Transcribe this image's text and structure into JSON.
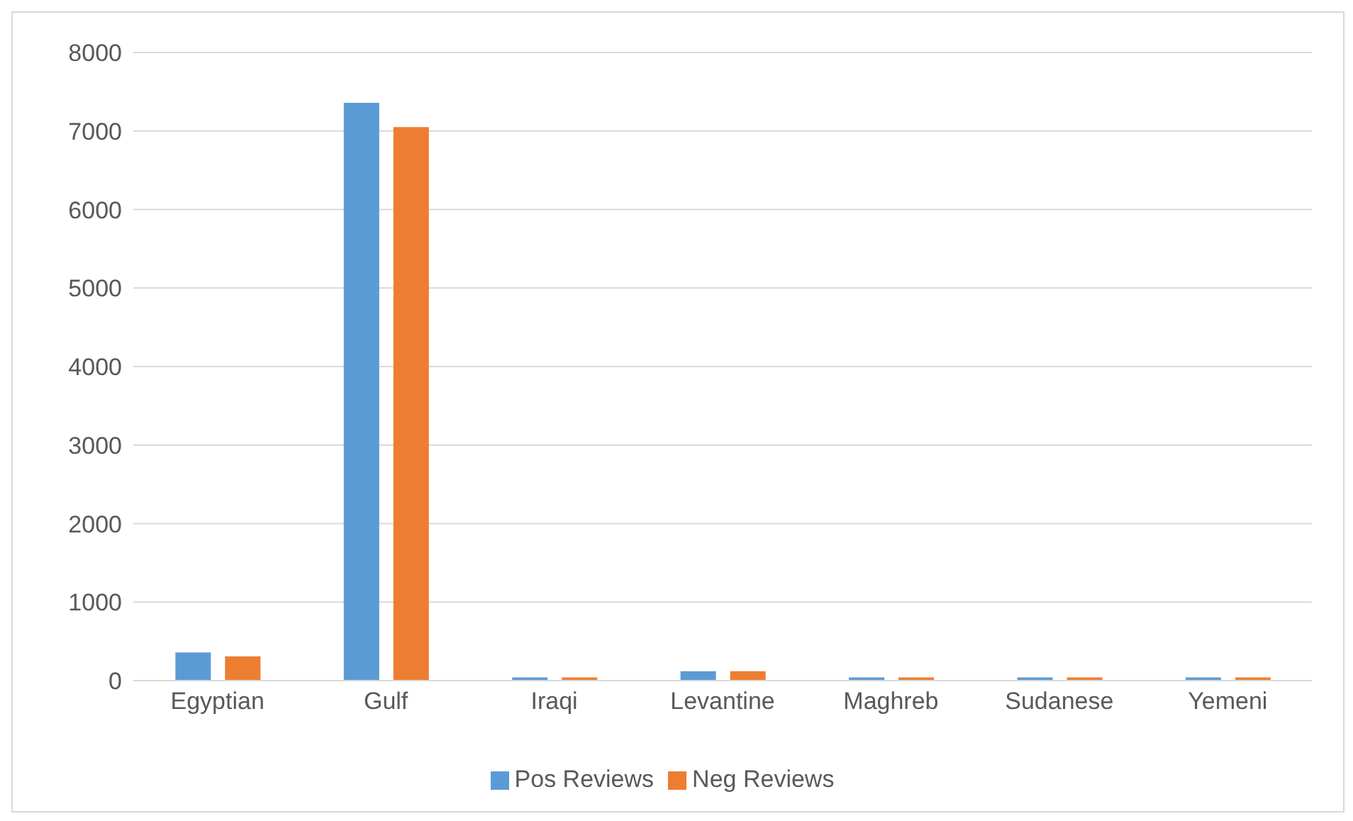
{
  "chart_data": {
    "type": "bar",
    "categories": [
      "Egyptian",
      "Gulf",
      "Iraqi",
      "Levantine",
      "Maghreb",
      "Sudanese",
      "Yemeni"
    ],
    "series": [
      {
        "name": "Pos Reviews",
        "color": "#5b9bd5",
        "values": [
          360,
          7360,
          40,
          120,
          40,
          40,
          40
        ]
      },
      {
        "name": "Neg Reviews",
        "color": "#ed7d31",
        "values": [
          310,
          7050,
          40,
          120,
          40,
          40,
          40
        ]
      }
    ],
    "ylim": [
      0,
      8000
    ],
    "yticks": [
      0,
      1000,
      2000,
      3000,
      4000,
      5000,
      6000,
      7000,
      8000
    ],
    "grid": "y",
    "legend": "bottom"
  }
}
